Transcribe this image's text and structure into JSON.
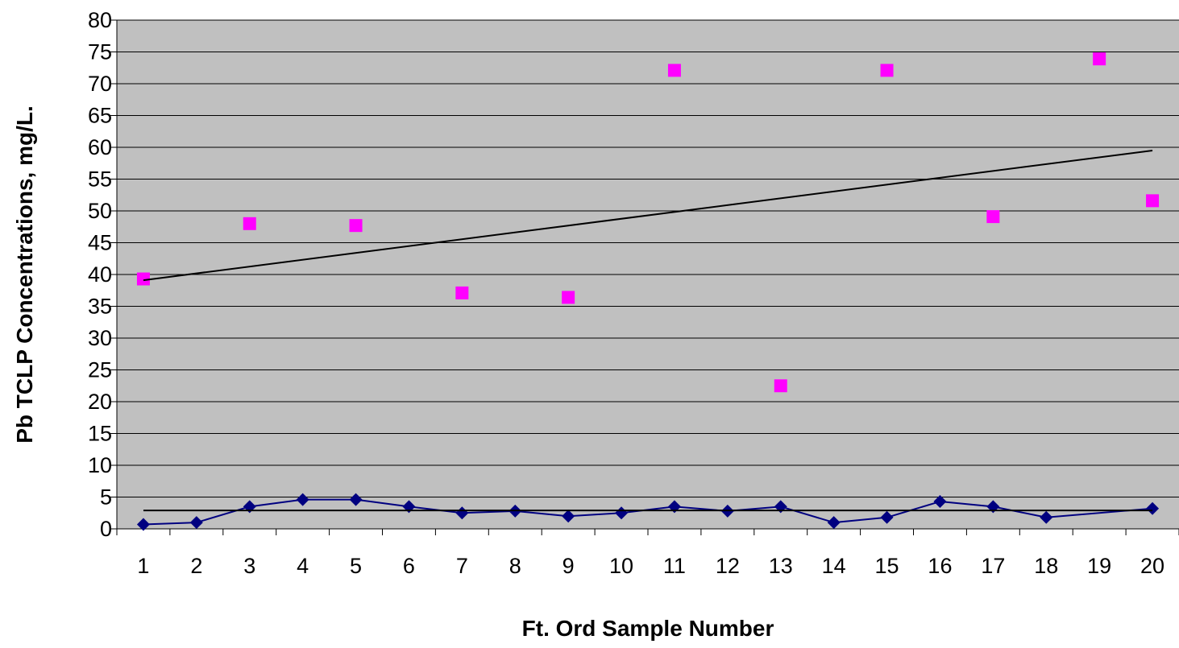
{
  "chart_data": {
    "type": "scatter",
    "title": "",
    "xlabel": "Ft. Ord Sample Number",
    "ylabel": "Pb TCLP Concentrations, mg/L.",
    "categories": [
      "1",
      "2",
      "3",
      "4",
      "5",
      "6",
      "7",
      "8",
      "9",
      "10",
      "11",
      "12",
      "13",
      "14",
      "15",
      "16",
      "17",
      "18",
      "19",
      "20"
    ],
    "ylim": [
      0,
      80
    ],
    "yticks": [
      "0",
      "5",
      "10",
      "15",
      "20",
      "25",
      "30",
      "35",
      "40",
      "45",
      "50",
      "55",
      "60",
      "65",
      "70",
      "75",
      "80"
    ],
    "grid": true,
    "series": [
      {
        "kind": "scatter",
        "marker": "square",
        "color": "#ff00ff",
        "x": [
          1,
          3,
          5,
          7,
          9,
          11,
          13,
          15,
          17,
          19,
          20
        ],
        "values": [
          39.3,
          48.0,
          47.7,
          37.1,
          36.4,
          72.1,
          22.5,
          72.1,
          49.1,
          73.9,
          51.6
        ]
      },
      {
        "kind": "trend",
        "color": "#000000",
        "x": [
          1,
          20
        ],
        "values": [
          39.1,
          59.5
        ]
      },
      {
        "kind": "line",
        "marker": "diamond",
        "color": "#000080",
        "x": [
          1,
          2,
          3,
          4,
          5,
          6,
          7,
          8,
          9,
          10,
          11,
          12,
          13,
          14,
          15,
          16,
          17,
          18,
          20
        ],
        "values": [
          0.7,
          1.0,
          3.5,
          4.6,
          4.6,
          3.5,
          2.5,
          2.8,
          2.0,
          2.5,
          3.5,
          2.8,
          3.5,
          1.0,
          1.8,
          4.3,
          3.5,
          1.8,
          3.2
        ]
      },
      {
        "kind": "trend",
        "color": "#000000",
        "x": [
          1,
          20
        ],
        "values": [
          2.9,
          2.9
        ]
      }
    ],
    "colors": {
      "plot_background": "#c0c0c0",
      "gridline": "#000000"
    }
  }
}
